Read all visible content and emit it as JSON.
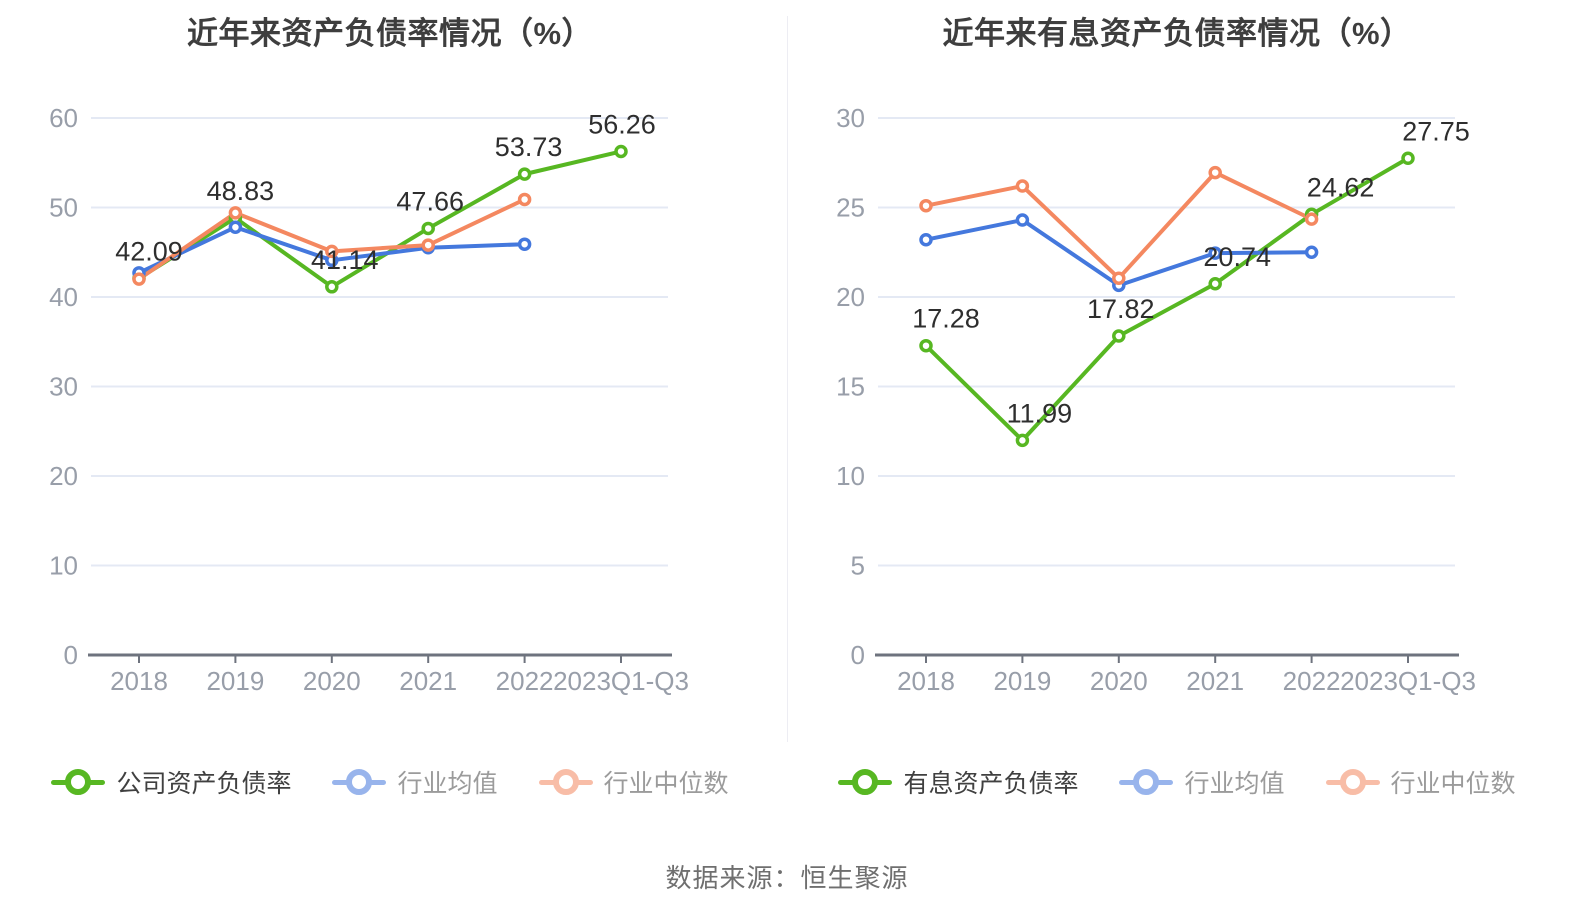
{
  "page": {
    "background": "#ffffff",
    "source_note": "数据来源：恒生聚源"
  },
  "colors": {
    "company": "#57b722",
    "industry_avg": "#4478dd",
    "industry_median": "#f48860",
    "grid": "#e4e9f4",
    "axis": "#6e737e",
    "tick_label": "#989ea9",
    "data_label": "#2e2e2e",
    "title": "#3e3e3e"
  },
  "chart_data": [
    {
      "type": "line",
      "title": "近年来资产负债率情况（%）",
      "categories": [
        "2018",
        "2019",
        "2020",
        "2021",
        "2022",
        "2023Q1-Q3"
      ],
      "ylim": [
        0,
        60
      ],
      "ytick_step": 10,
      "grid": true,
      "legend_position": "bottom",
      "series": [
        {
          "name": "公司资产负债率",
          "color_key": "company",
          "show_labels": true,
          "values": [
            42.09,
            48.83,
            41.14,
            47.66,
            53.73,
            56.26
          ],
          "labels": [
            "42.09",
            "48.83",
            "41.14",
            "47.66",
            "53.73",
            "56.26"
          ]
        },
        {
          "name": "行业均值",
          "color_key": "industry_avg",
          "show_labels": false,
          "values": [
            42.7,
            47.8,
            44.1,
            45.5,
            45.9,
            null
          ]
        },
        {
          "name": "行业中位数",
          "color_key": "industry_median",
          "show_labels": false,
          "values": [
            42.0,
            49.4,
            45.1,
            45.8,
            50.9,
            null
          ]
        }
      ],
      "label_dx": [
        10,
        5,
        13,
        2,
        4,
        1
      ]
    },
    {
      "type": "line",
      "title": "近年来有息资产负债率情况（%）",
      "categories": [
        "2018",
        "2019",
        "2020",
        "2021",
        "2022",
        "2023Q1-Q3"
      ],
      "ylim": [
        0,
        30
      ],
      "ytick_step": 5,
      "grid": true,
      "legend_position": "bottom",
      "series": [
        {
          "name": "有息资产负债率",
          "color_key": "company",
          "show_labels": true,
          "values": [
            17.28,
            11.99,
            17.82,
            20.74,
            24.62,
            27.75
          ],
          "labels": [
            "17.28",
            "11.99",
            "17.82",
            "20.74",
            "24.62",
            "27.75"
          ]
        },
        {
          "name": "行业均值",
          "color_key": "industry_avg",
          "show_labels": false,
          "values": [
            23.2,
            24.3,
            20.65,
            22.45,
            22.5,
            null
          ]
        },
        {
          "name": "行业中位数",
          "color_key": "industry_median",
          "show_labels": false,
          "values": [
            25.1,
            26.2,
            21.05,
            26.95,
            24.35,
            null
          ]
        }
      ],
      "label_dx": [
        20,
        17,
        2,
        22,
        29,
        28
      ]
    }
  ]
}
